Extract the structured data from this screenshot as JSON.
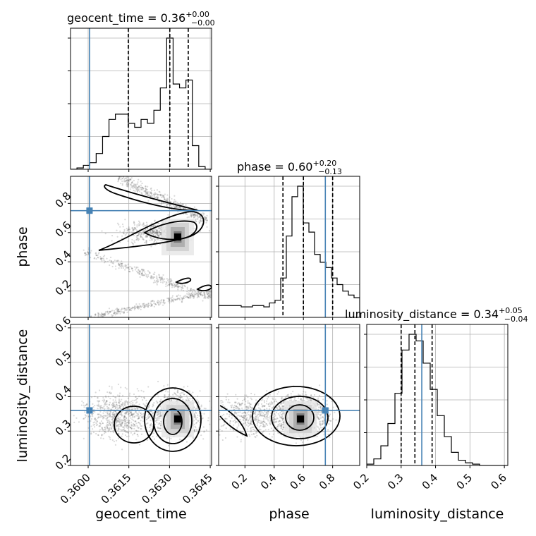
{
  "chart_data": {
    "type": "corner",
    "truth_color": "#4682b4",
    "params": [
      {
        "name": "geocent_time",
        "title": {
          "label": "geocent_time",
          "median": "0.36",
          "plus": "+0.00",
          "minus": "−0.00"
        },
        "range": [
          0.35935,
          0.36455
        ],
        "ticks": [
          0.36,
          0.3615,
          0.363,
          0.3645
        ],
        "tick_labels": [
          "0.3600",
          "0.3615",
          "0.3630",
          "0.3645"
        ],
        "truth": 0.36005,
        "quantiles": [
          0.36148,
          0.36301,
          0.36369
        ]
      },
      {
        "name": "phase",
        "title": {
          "label": "phase",
          "median": "0.60",
          "plus": "+0.20",
          "minus": "−0.13"
        },
        "range": [
          0.02,
          0.985
        ],
        "ticks": [
          0.2,
          0.4,
          0.6,
          0.8
        ],
        "tick_labels": [
          "0.2",
          "0.4",
          "0.6",
          "0.8"
        ],
        "truth": 0.75,
        "quantiles": [
          0.46,
          0.6,
          0.8
        ]
      },
      {
        "name": "luminosity_distance",
        "title": {
          "label": "luminosity_distance",
          "median": "0.34",
          "plus": "+0.05",
          "minus": "−0.04"
        },
        "range": [
          0.2,
          0.61
        ],
        "ticks": [
          0.2,
          0.3,
          0.4,
          0.5,
          0.6
        ],
        "tick_labels": [
          "0.2",
          "0.3",
          "0.4",
          "0.5",
          "0.6"
        ],
        "truth": 0.36,
        "quantiles": [
          0.3,
          0.34,
          0.39
        ]
      }
    ],
    "histograms": [
      {
        "param": "geocent_time",
        "counts": [
          0,
          0.01,
          0.03,
          0.05,
          0.12,
          0.25,
          0.38,
          0.42,
          0.42,
          0.35,
          0.32,
          0.38,
          0.35,
          0.45,
          0.62,
          1.0,
          0.65,
          0.62,
          0.68,
          0.18,
          0.02,
          0
        ]
      },
      {
        "param": "phase",
        "counts": [
          0.09,
          0.09,
          0.09,
          0.09,
          0.08,
          0.08,
          0.09,
          0.09,
          0.08,
          0.11,
          0.13,
          0.3,
          0.62,
          0.92,
          1.0,
          0.72,
          0.65,
          0.48,
          0.42,
          0.38,
          0.3,
          0.25,
          0.2,
          0.17,
          0.15
        ]
      },
      {
        "param": "luminosity_distance",
        "counts": [
          0.01,
          0.05,
          0.15,
          0.32,
          0.55,
          0.88,
          1.0,
          0.95,
          0.78,
          0.58,
          0.38,
          0.22,
          0.1,
          0.04,
          0.02,
          0.01,
          0,
          0,
          0,
          0
        ]
      }
    ],
    "posterior_2d": [
      {
        "x": "geocent_time",
        "y": "phase",
        "mode": [
          0.3633,
          0.57
        ]
      },
      {
        "x": "geocent_time",
        "y": "luminosity_distance",
        "mode": [
          0.3633,
          0.335
        ]
      },
      {
        "x": "phase",
        "y": "luminosity_distance",
        "mode": [
          0.58,
          0.335
        ]
      }
    ]
  }
}
